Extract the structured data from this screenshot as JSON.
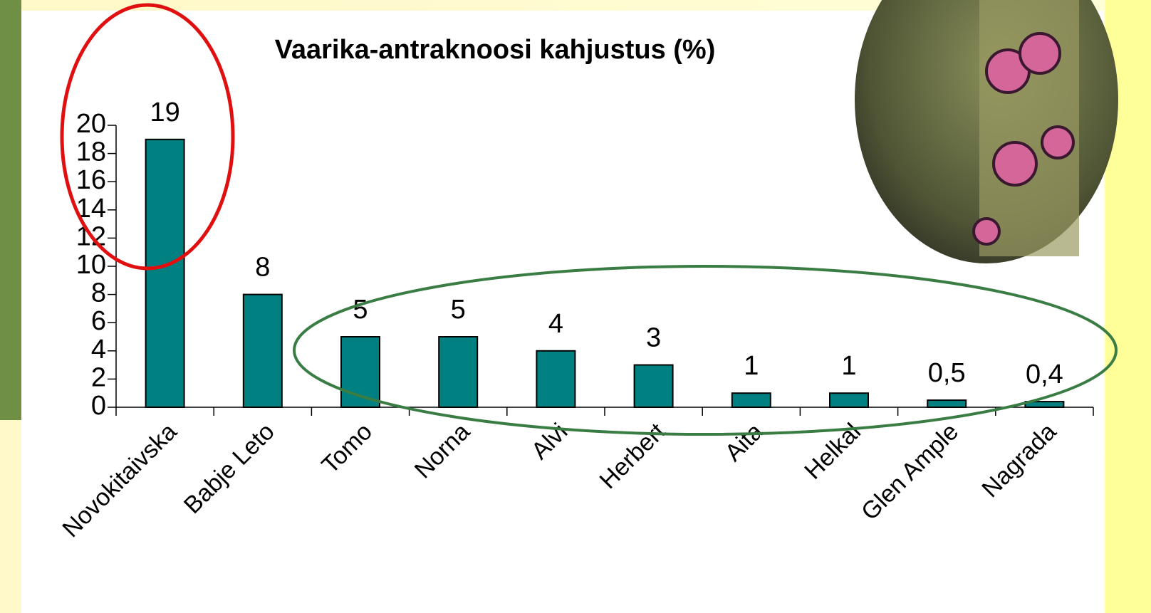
{
  "chart_data": {
    "type": "bar",
    "title": "Vaarika-antraknoosi kahjustus (%)",
    "categories": [
      "Novokitaivska",
      "Babje Leto",
      "Tomo",
      "Norna",
      "Alvi",
      "Herbert",
      "Aita",
      "Helkal",
      "Glen Ample",
      "Nagrada"
    ],
    "values": [
      19,
      8,
      5,
      5,
      4,
      3,
      1,
      1,
      0.5,
      0.4
    ],
    "value_labels": [
      "19",
      "8",
      "5",
      "5",
      "4",
      "3",
      "1",
      "1",
      "0,5",
      "0,4"
    ],
    "color": "#008080",
    "ylim": [
      0,
      20
    ],
    "yticks": [
      0,
      2,
      4,
      6,
      8,
      10,
      12,
      14,
      16,
      18,
      20
    ]
  }
}
